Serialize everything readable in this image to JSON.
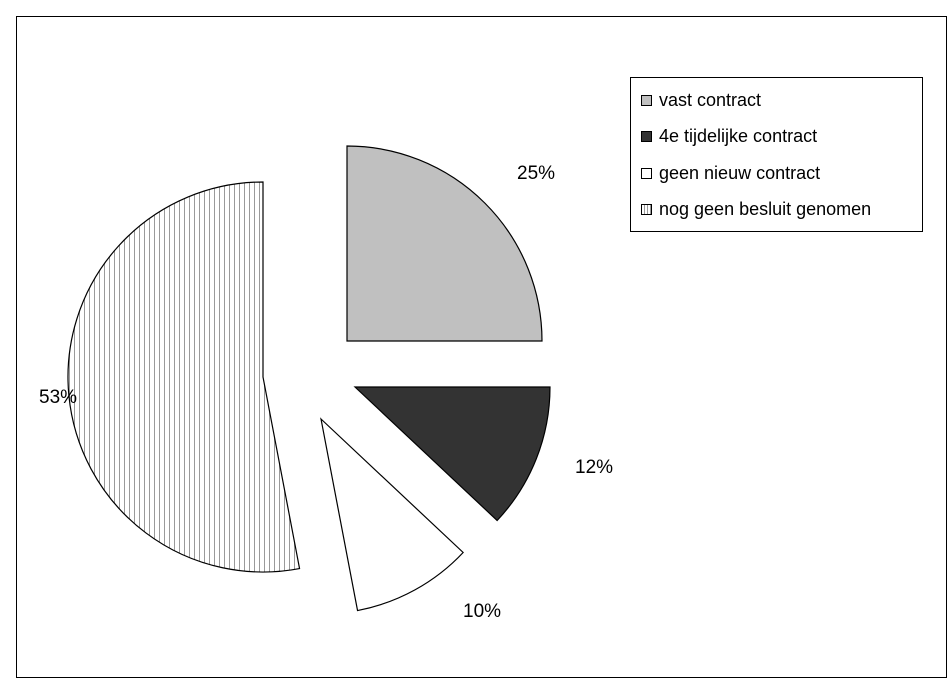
{
  "chart_data": {
    "type": "pie",
    "title": "",
    "exploded": true,
    "start_angle_deg": 0,
    "direction": "clockwise",
    "slices": [
      {
        "label": "vast contract",
        "value": 25,
        "label_text": "25%",
        "color": "#c0c0c0",
        "pattern": "solid"
      },
      {
        "label": "4e tijdelijke contract",
        "value": 12,
        "label_text": "12%",
        "color": "#333333",
        "pattern": "solid"
      },
      {
        "label": "geen nieuw  contract",
        "value": 10,
        "label_text": "10%",
        "color": "#ffffff",
        "pattern": "solid"
      },
      {
        "label": "nog geen besluit genomen",
        "value": 53,
        "label_text": "53%",
        "color": "#ffffff",
        "pattern": "vertical-lines"
      }
    ],
    "legend": {
      "position": "top-right",
      "items": [
        "vast contract",
        "4e tijdelijke contract",
        "geen nieuw  contract",
        "nog geen besluit genomen"
      ]
    }
  }
}
